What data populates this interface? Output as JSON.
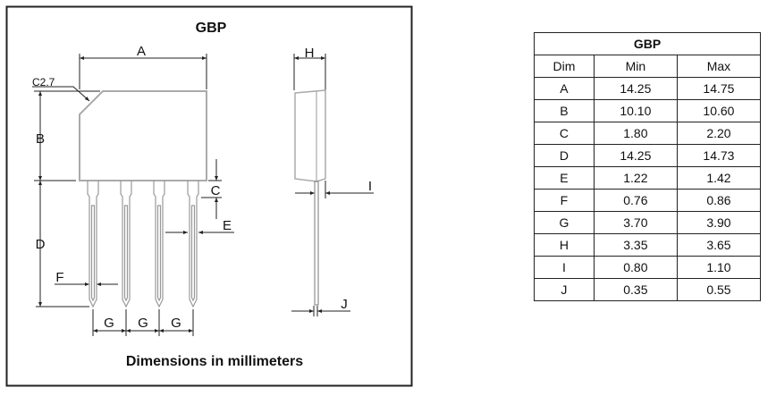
{
  "drawing": {
    "title": "GBP",
    "chamfer_label": "C2.7",
    "dim_labels": {
      "A": "A",
      "B": "B",
      "C": "C",
      "D": "D",
      "E": "E",
      "F": "F",
      "G": "G",
      "H": "H",
      "I": "I",
      "J": "J"
    },
    "caption": "Dimensions in millimeters"
  },
  "table": {
    "title": "GBP",
    "headers": [
      "Dim",
      "Min",
      "Max"
    ],
    "rows": [
      [
        "A",
        "14.25",
        "14.75"
      ],
      [
        "B",
        "10.10",
        "10.60"
      ],
      [
        "C",
        "1.80",
        "2.20"
      ],
      [
        "D",
        "14.25",
        "14.73"
      ],
      [
        "E",
        "1.22",
        "1.42"
      ],
      [
        "F",
        "0.76",
        "0.86"
      ],
      [
        "G",
        "3.70",
        "3.90"
      ],
      [
        "H",
        "3.35",
        "3.65"
      ],
      [
        "I",
        "0.80",
        "1.10"
      ],
      [
        "J",
        "0.35",
        "0.55"
      ]
    ]
  }
}
